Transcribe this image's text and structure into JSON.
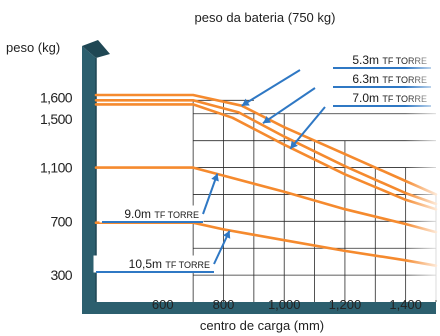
{
  "chart_data": {
    "type": "line",
    "title": "peso da bateria (750 kg)",
    "ylabel": "peso (kg)",
    "xlabel": "centro de carga (mm)",
    "x_ticks": [
      600,
      800,
      1000,
      1200,
      1400
    ],
    "x_tick_labels": [
      "600",
      "800",
      "1,000",
      "1,200",
      "1,400"
    ],
    "y_ticks": [
      300,
      700,
      1100,
      1500,
      1600
    ],
    "y_tick_labels": [
      "300",
      "700",
      "1,100",
      "1,500",
      "1,600"
    ],
    "xlim": [
      380,
      1500
    ],
    "ylim": [
      100,
      1900
    ],
    "grid": true,
    "series": [
      {
        "name": "5.3m TF TORRE",
        "x": [
          380,
          700,
          860,
          1000,
          1200,
          1400,
          1500
        ],
        "y": [
          1640,
          1640,
          1560,
          1400,
          1200,
          1000,
          900
        ]
      },
      {
        "name": "6.3m TF TORRE",
        "x": [
          380,
          700,
          850,
          1000,
          1200,
          1400,
          1500
        ],
        "y": [
          1600,
          1600,
          1510,
          1330,
          1110,
          910,
          830
        ]
      },
      {
        "name": "7.0m TF TORRE",
        "x": [
          380,
          700,
          830,
          1000,
          1200,
          1400,
          1500
        ],
        "y": [
          1570,
          1570,
          1470,
          1270,
          1050,
          860,
          790
        ]
      },
      {
        "name": "9.0m TF TORRE",
        "x": [
          380,
          700,
          800,
          1000,
          1200,
          1400,
          1500
        ],
        "y": [
          1100,
          1100,
          1040,
          920,
          790,
          680,
          620
        ]
      },
      {
        "name": "10.5m TF TORRE",
        "x": [
          380,
          700,
          800,
          1000,
          1200,
          1400,
          1500
        ],
        "y": [
          690,
          690,
          640,
          560,
          480,
          410,
          370
        ]
      }
    ],
    "callout_labels": [
      "5.3m TF TORRE",
      "6.3m TF TORRE",
      "7.0m TF TORRE",
      "9.0m TF TORRE",
      "10,5m TF TORRE"
    ],
    "colors": {
      "frame": "#2c5f6e",
      "frame_shadow": "#1f4754",
      "curve": "#f58a2e",
      "grid": "#2a2a2a",
      "arrow": "#2f78c4",
      "label_box": "#ffffff"
    }
  }
}
